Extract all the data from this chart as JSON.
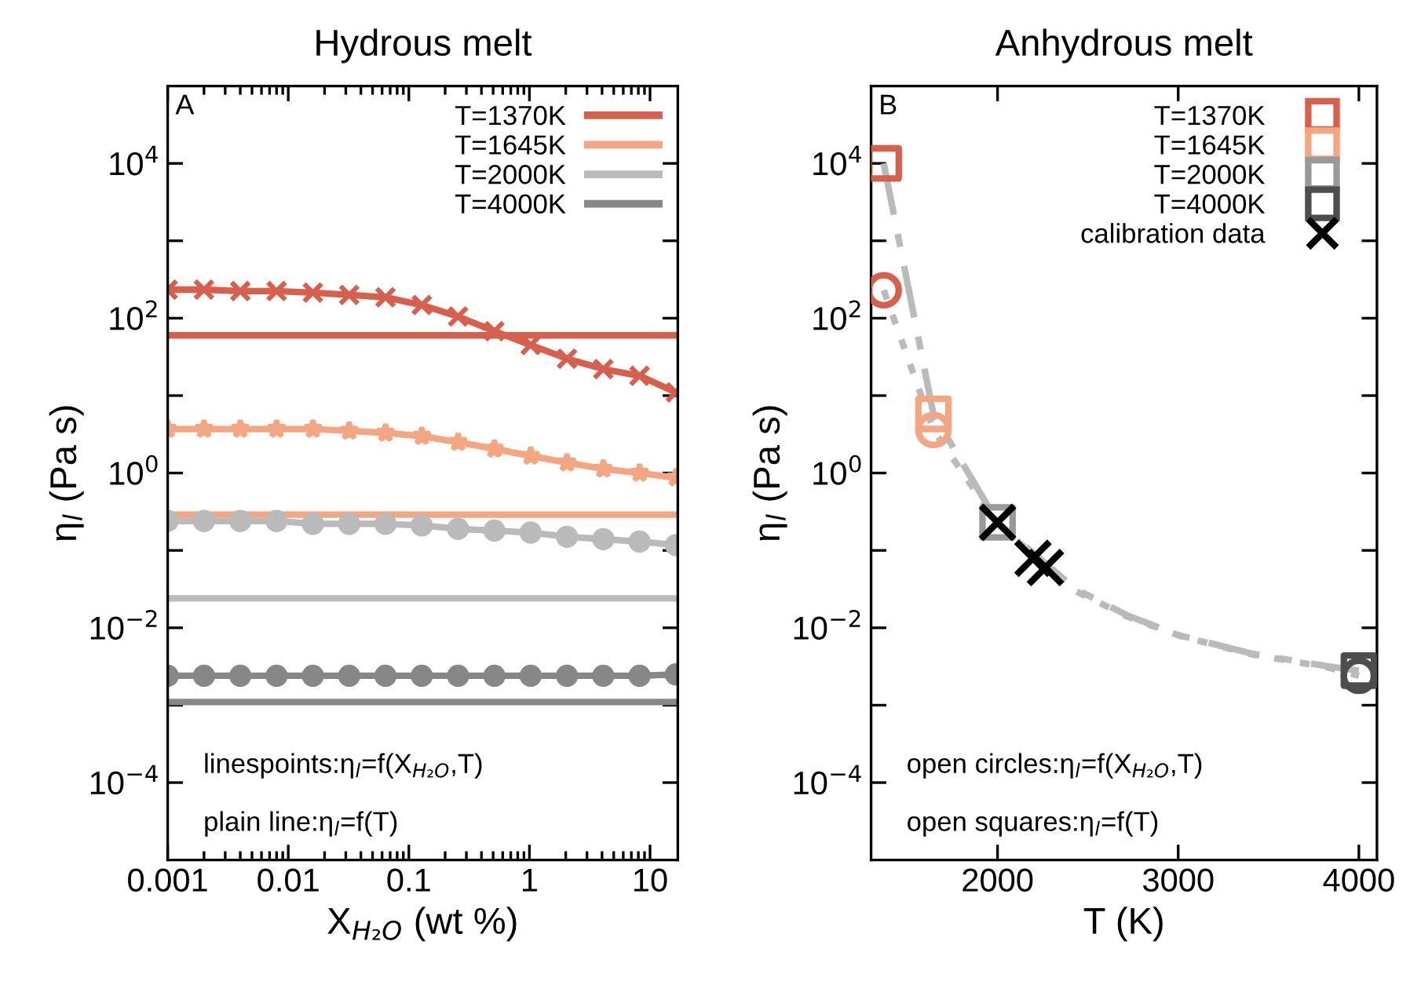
{
  "chart_data": [
    {
      "type": "line",
      "title": "Hydrous melt",
      "xlabel": "X$_{H₂O}$ (wt %)",
      "ylabel": "η$_{l}$ (Pa s)",
      "log": "xy",
      "xlim": [
        0.001,
        17
      ],
      "ylim": [
        1e-05,
        100000.0
      ],
      "xticks": [
        0.001,
        0.01,
        0.1,
        1,
        10
      ],
      "yticks": [
        {
          "value": 0.0001,
          "label": "10$^{−4}$"
        },
        {
          "value": 0.001,
          "label": null
        },
        {
          "value": 0.01,
          "label": "10$^{−2}$"
        },
        {
          "value": 0.1,
          "label": null
        },
        {
          "value": 1,
          "label": "10$^{0}$"
        },
        {
          "value": 10,
          "label": null
        },
        {
          "value": 100,
          "label": "10$^{2}$"
        },
        {
          "value": 1000,
          "label": null
        },
        {
          "value": 10000,
          "label": "10$^{4}$"
        }
      ],
      "grid": false,
      "legend": "top right",
      "annotations": [
        "A",
        "linespoints:η$_{l}$=f(X$_{H₂O}$,T)",
        "plain line:η$_{l}$=f(T)"
      ],
      "x": [
        0.001,
        0.002,
        0.004,
        0.008,
        0.016,
        0.032,
        0.064,
        0.128,
        0.256,
        0.512,
        1.024,
        2.048,
        4.096,
        8.192,
        16.384
      ],
      "series": [
        {
          "name": "T=1370K",
          "color": "#d6604d",
          "marker": "none",
          "x": [
            0.001,
            16.384
          ],
          "values": [
            60,
            60
          ]
        },
        {
          "name": "T=1645K",
          "color": "#f4a582",
          "marker": "none",
          "x": [
            0.001,
            16.384
          ],
          "values": [
            0.29,
            0.29
          ]
        },
        {
          "name": "T=2000K",
          "color": "#bababa",
          "marker": "none",
          "x": [
            0.001,
            16.384
          ],
          "values": [
            0.024,
            0.024
          ]
        },
        {
          "name": "T=4000K",
          "color": "#878787",
          "marker": "none",
          "x": [
            0.001,
            16.384
          ],
          "values": [
            0.0011,
            0.0011
          ]
        },
        {
          "color": "#d6604d",
          "marker": "cross",
          "values": [
            234,
            234,
            224,
            224,
            214,
            200,
            186,
            148,
            105,
            68,
            45,
            30,
            22,
            18,
            11
          ]
        },
        {
          "color": "#f4a582",
          "marker": "star",
          "values": [
            3.7,
            3.7,
            3.7,
            3.7,
            3.7,
            3.5,
            3.3,
            3.0,
            2.5,
            2.05,
            1.66,
            1.36,
            1.13,
            1.0,
            0.87
          ]
        },
        {
          "color": "#bababa",
          "marker": "circle",
          "values": [
            0.24,
            0.24,
            0.24,
            0.24,
            0.22,
            0.22,
            0.22,
            0.21,
            0.19,
            0.18,
            0.17,
            0.15,
            0.14,
            0.13,
            0.117
          ]
        },
        {
          "color": "#878787",
          "marker": "circle",
          "values": [
            0.0024,
            0.0024,
            0.0024,
            0.0024,
            0.0024,
            0.0024,
            0.0024,
            0.0024,
            0.0024,
            0.0024,
            0.0024,
            0.0024,
            0.0024,
            0.0024,
            0.0025
          ]
        }
      ]
    },
    {
      "type": "scatter",
      "title": "Anhydrous melt",
      "xlabel": "T (K)",
      "ylabel": "η$_{l}$ (Pa s)",
      "log": "y",
      "xlim": [
        1300,
        4100
      ],
      "ylim": [
        1e-05,
        100000.0
      ],
      "xticks": [
        2000,
        3000,
        4000
      ],
      "yticks": [
        {
          "value": 0.0001,
          "label": "10$^{−4}$"
        },
        {
          "value": 0.001,
          "label": null
        },
        {
          "value": 0.01,
          "label": "10$^{−2}$"
        },
        {
          "value": 0.1,
          "label": null
        },
        {
          "value": 1,
          "label": "10$^{0}$"
        },
        {
          "value": 10,
          "label": null
        },
        {
          "value": 100,
          "label": "10$^{2}$"
        },
        {
          "value": 1000,
          "label": null
        },
        {
          "value": 10000,
          "label": "10$^{4}$"
        }
      ],
      "grid": false,
      "legend": "top right",
      "annotations": [
        "B",
        "open circles:η$_{l}$=f(X$_{H₂O}$,T)",
        "open squares:η$_{l}$=f(T)"
      ],
      "series": [
        {
          "type": "line",
          "color": "#bababa",
          "marker": "none",
          "line_style": "dashed",
          "x": [
            1370,
            1645,
            2000,
            2430,
            2717,
            3013,
            3413,
            3822,
            4000
          ],
          "values": [
            10000,
            5.8,
            0.23,
            0.032,
            0.0145,
            0.0079,
            0.0046,
            0.0032,
            0.0028
          ]
        },
        {
          "type": "line",
          "color": "#bababa",
          "marker": "none",
          "line_style": "dotted",
          "x": [
            1370,
            1645,
            2000,
            2430,
            2717,
            3013,
            3413,
            3822,
            4000
          ],
          "values": [
            230,
            3.6,
            0.22,
            0.03,
            0.014,
            0.0078,
            0.0045,
            0.0031,
            0.0024
          ]
        },
        {
          "color": "#d6604d",
          "marker": "circle",
          "x": [
            1370
          ],
          "values": [
            230
          ]
        },
        {
          "color": "#f4a582",
          "marker": "circle",
          "x": [
            1645
          ],
          "values": [
            3.6
          ]
        },
        {
          "color": "#4d4d4d",
          "marker": "circle",
          "x": [
            4000
          ],
          "values": [
            0.0024
          ]
        },
        {
          "name": "T=1370K",
          "color": "#d6604d",
          "marker": "square",
          "x": [
            1370
          ],
          "values": [
            10000
          ]
        },
        {
          "name": "T=1645K",
          "color": "#f4a582",
          "marker": "square",
          "x": [
            1645
          ],
          "values": [
            5.8
          ]
        },
        {
          "name": "T=2000K",
          "color": "#999999",
          "marker": "square",
          "x": [
            2000
          ],
          "values": [
            0.23
          ]
        },
        {
          "name": "T=4000K",
          "color": "#4d4d4d",
          "marker": "square",
          "x": [
            4000
          ],
          "values": [
            0.0028
          ]
        },
        {
          "name": "calibration data",
          "color": "#000000",
          "marker": "cross",
          "x": [
            2000,
            2196,
            2265
          ],
          "values": [
            0.23,
            0.079,
            0.06
          ]
        }
      ]
    }
  ]
}
